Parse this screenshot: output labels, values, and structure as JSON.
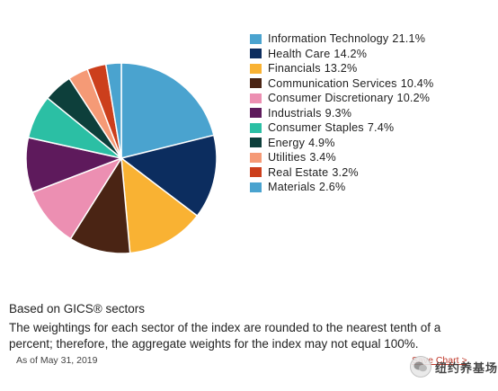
{
  "chart_data": {
    "type": "pie",
    "start_angle": "12 o'clock, clockwise",
    "legend_position": "right",
    "slices": [
      {
        "label": "Information Technology",
        "value": 21.1,
        "value_label": "21.1%",
        "color": "#4aa3cf"
      },
      {
        "label": "Health Care",
        "value": 14.2,
        "value_label": "14.2%",
        "color": "#0c2d5f"
      },
      {
        "label": "Financials",
        "value": 13.2,
        "value_label": "13.2%",
        "color": "#f9b233"
      },
      {
        "label": "Communication Services",
        "value": 10.4,
        "value_label": "10.4%",
        "color": "#4a2414"
      },
      {
        "label": "Consumer Discretionary",
        "value": 10.2,
        "value_label": "10.2%",
        "color": "#ec8fb2"
      },
      {
        "label": "Industrials",
        "value": 9.3,
        "value_label": "9.3%",
        "color": "#5e1a5c"
      },
      {
        "label": "Consumer Staples",
        "value": 7.4,
        "value_label": "7.4%",
        "color": "#2bbfa4"
      },
      {
        "label": "Energy",
        "value": 4.9,
        "value_label": "4.9%",
        "color": "#0d3f3b"
      },
      {
        "label": "Utilities",
        "value": 3.4,
        "value_label": "3.4%",
        "color": "#f59a76"
      },
      {
        "label": "Real Estate",
        "value": 3.2,
        "value_label": "3.2%",
        "color": "#cc3f1c"
      },
      {
        "label": "Materials",
        "value": 2.6,
        "value_label": "2.6%",
        "color": "#4aa3cf"
      }
    ]
  },
  "footnote": {
    "title": "Based on GICS® sectors",
    "body": "The weightings for each sector of the index are rounded to the nearest tenth of a percent; therefore, the aggregate weights for the index may not equal 100%.",
    "as_of": "As of May 31, 2019",
    "save_chart": "Save Chart >"
  },
  "watermark": {
    "text": "纽约养基场"
  }
}
